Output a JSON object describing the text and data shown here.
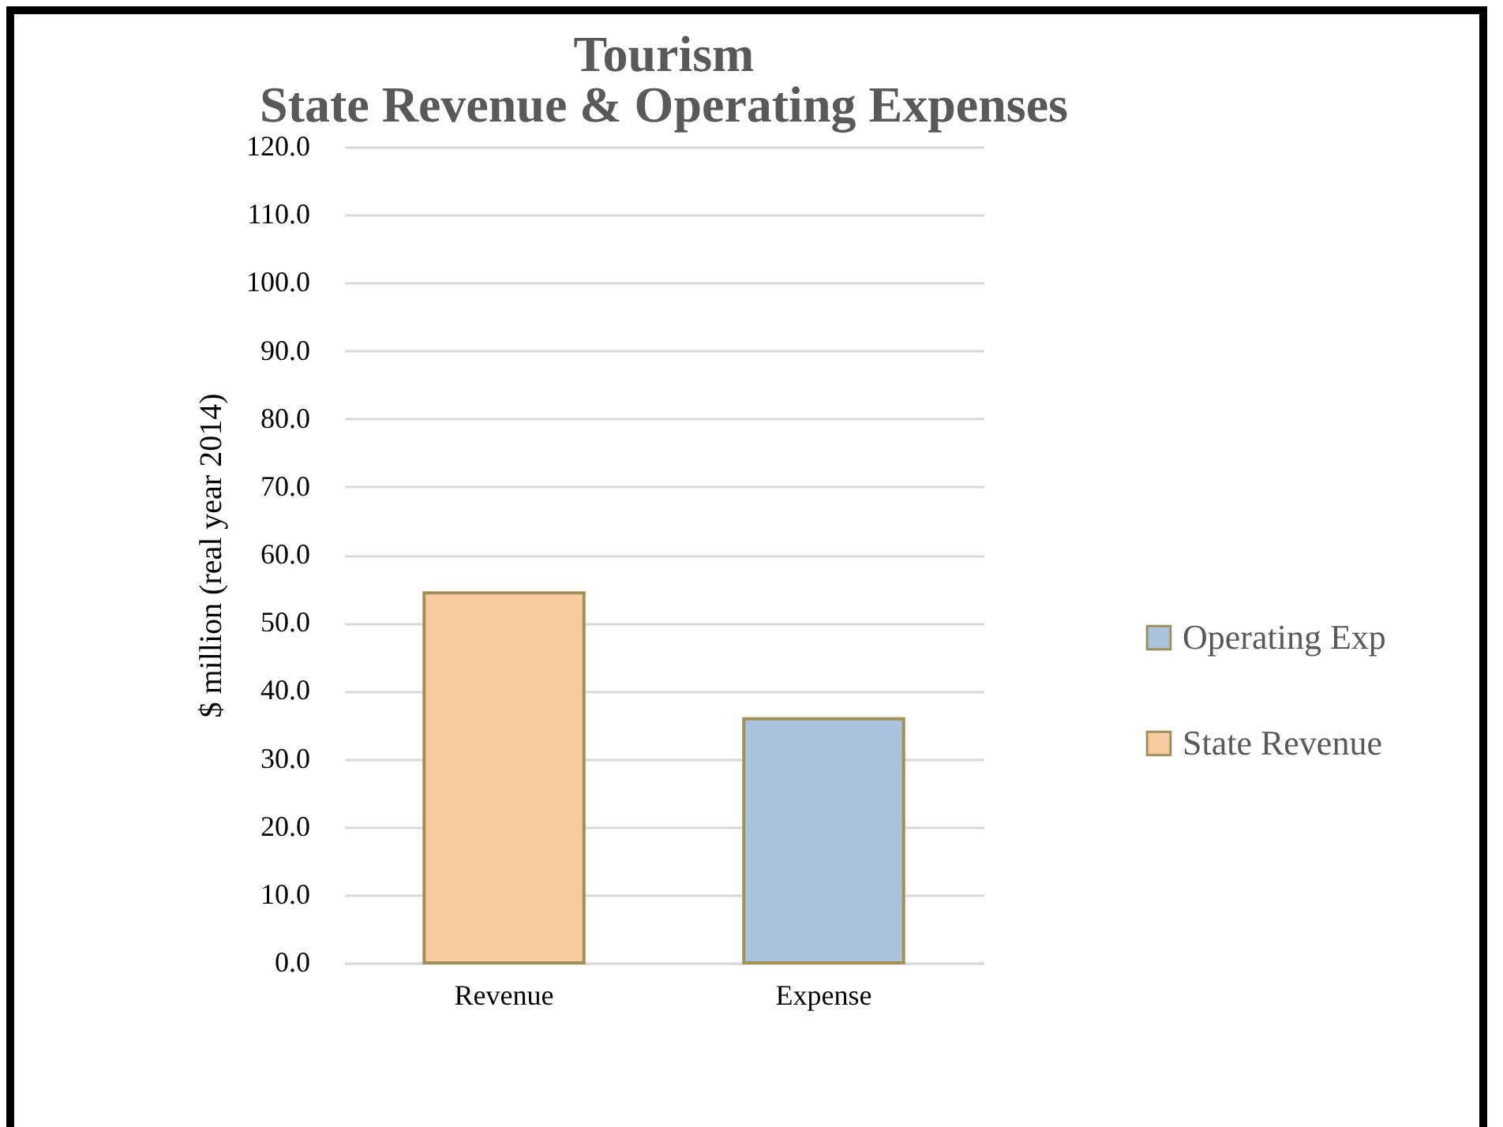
{
  "chart_data": {
    "type": "bar",
    "title": "Tourism",
    "subtitle": "State Revenue & Operating Expenses",
    "ylabel": "$ million (real year 2014)",
    "categories": [
      "Revenue",
      "Expense"
    ],
    "series": [
      {
        "name": "Operating Exp",
        "color": "#a9c3df",
        "values": [
          null,
          35.9
        ]
      },
      {
        "name": "State Revenue",
        "color": "#f9cba1",
        "values": [
          54.4,
          null
        ]
      }
    ],
    "stacked": true,
    "ylim": [
      0,
      120
    ],
    "yticks": [
      {
        "value": 0,
        "label": "0.0"
      },
      {
        "value": 10,
        "label": "10.0"
      },
      {
        "value": 20,
        "label": "20.0"
      },
      {
        "value": 30,
        "label": "30.0"
      },
      {
        "value": 40,
        "label": "40.0"
      },
      {
        "value": 50,
        "label": "50.0"
      },
      {
        "value": 60,
        "label": "60.0"
      },
      {
        "value": 70,
        "label": "70.0"
      },
      {
        "value": 80,
        "label": "80.0"
      },
      {
        "value": 90,
        "label": "90.0"
      },
      {
        "value": 100,
        "label": "100.0"
      },
      {
        "value": 110,
        "label": "110.0"
      },
      {
        "value": 120,
        "label": "120.0"
      }
    ],
    "grid": "y",
    "legend": "right"
  }
}
